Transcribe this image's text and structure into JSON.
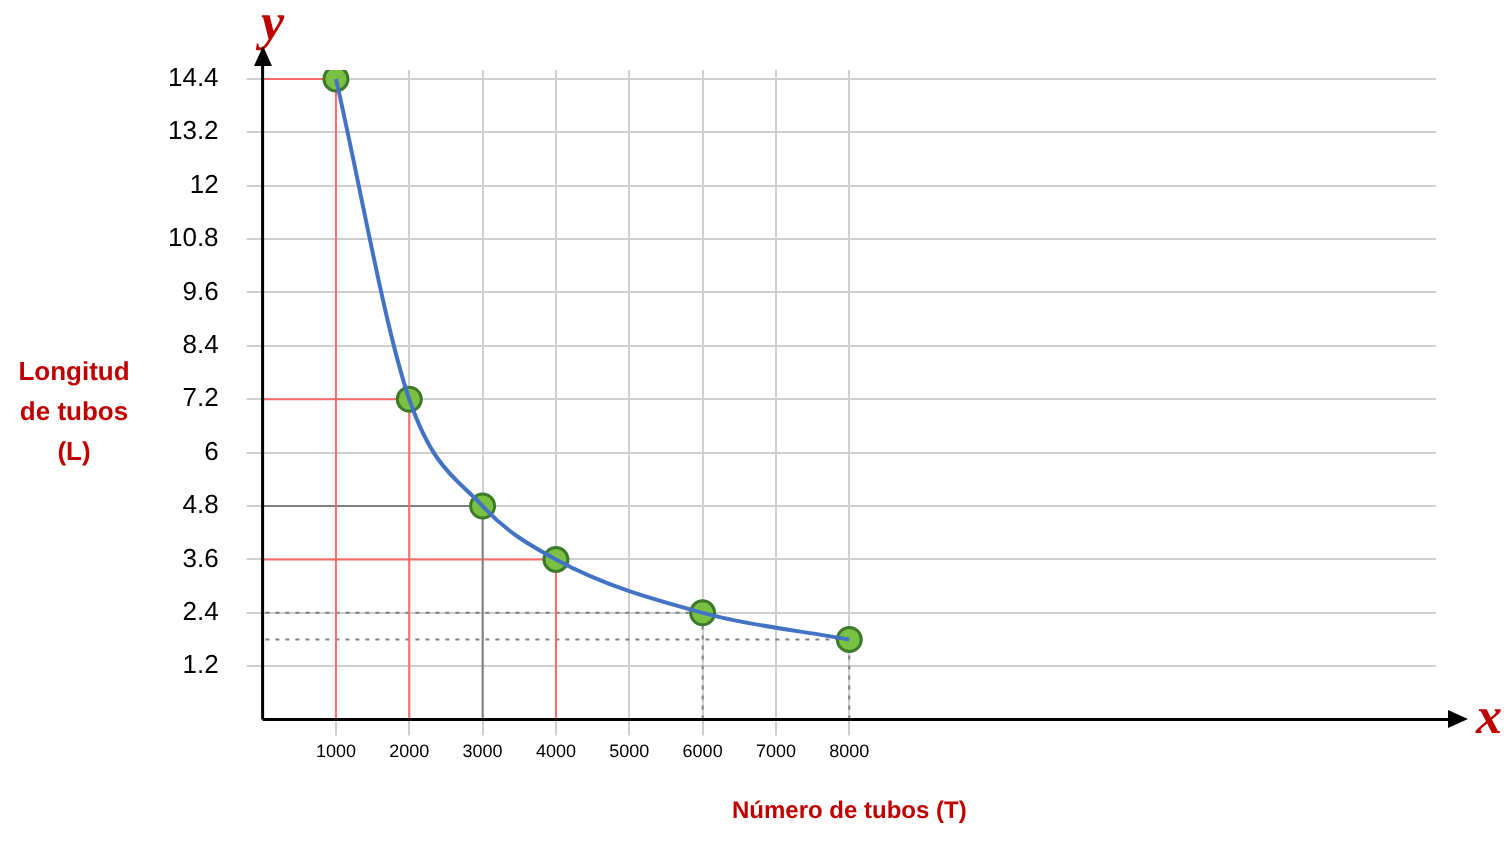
{
  "chart_data": {
    "type": "line",
    "xlabel": "Número de tubos (T)",
    "ylabel": "Longitud de tubos (L)",
    "annotations": [
      "y",
      "x"
    ],
    "x": [
      1000,
      2000,
      3000,
      4000,
      6000,
      8000
    ],
    "series": [
      {
        "type": "line",
        "color": "#4472c4",
        "marker": "none",
        "values": [
          14.4,
          7.2,
          4.8,
          3.6,
          2.4,
          1.8
        ]
      },
      {
        "type": "scatter",
        "color": "#7ac143",
        "marker": "circle",
        "values": [
          14.4,
          7.2,
          4.8,
          3.6,
          2.4,
          1.8
        ]
      },
      {
        "type": "line",
        "color": "#ff6b6b",
        "marker": "none",
        "x": [
          1000,
          1000,
          0
        ],
        "values": [
          0,
          14.4,
          14.4
        ]
      },
      {
        "type": "line",
        "color": "#ff6b6b",
        "marker": "none",
        "x": [
          2000,
          2000,
          0
        ],
        "values": [
          0,
          7.2,
          7.2
        ]
      },
      {
        "type": "line",
        "color": "#808080",
        "marker": "none",
        "x": [
          3000,
          3000,
          0
        ],
        "values": [
          0,
          4.8,
          4.8
        ]
      },
      {
        "type": "line",
        "color": "#ff6b6b",
        "marker": "none",
        "x": [
          4000,
          4000,
          0
        ],
        "values": [
          0,
          3.6,
          3.6
        ]
      },
      {
        "type": "line",
        "color": "#808080",
        "marker": "none",
        "line_style": "dotted",
        "x": [
          6000,
          6000,
          0
        ],
        "values": [
          0,
          2.4,
          2.4
        ]
      },
      {
        "type": "line",
        "color": "#808080",
        "marker": "none",
        "line_style": "dotted",
        "x": [
          8000,
          8000,
          0
        ],
        "values": [
          0,
          1.8,
          1.8
        ]
      }
    ],
    "xlim": [
      0,
      16000
    ],
    "xticks": [
      1000,
      2000,
      3000,
      4000,
      5000,
      6000,
      7000,
      8000
    ],
    "ylim": [
      0,
      14.6
    ],
    "yticks": [
      1.2,
      2.4,
      3.6,
      4.8,
      6,
      7.2,
      8.4,
      9.6,
      10.8,
      12,
      13.2,
      14.4
    ],
    "grid": true
  }
}
